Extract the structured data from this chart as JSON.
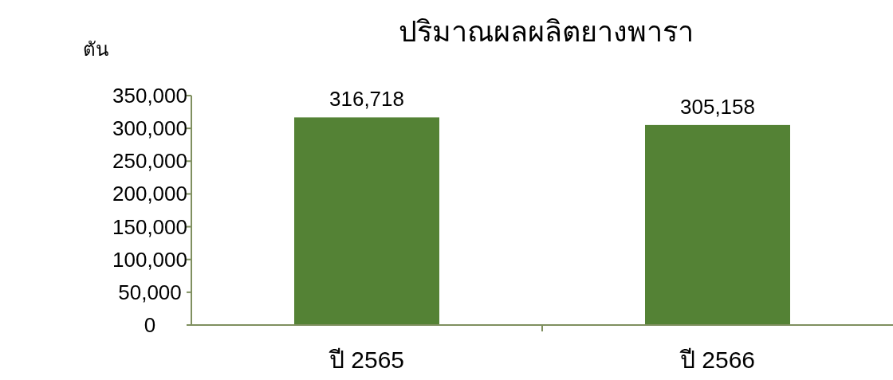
{
  "chart_data": {
    "type": "bar",
    "title": "ปริมาณผลผลิตยางพารา",
    "ylabel": "ตัน",
    "categories": [
      "ปี 2565",
      "ปี 2566"
    ],
    "values": [
      316718,
      305158
    ],
    "color": "#548235",
    "ylim": [
      0,
      350000
    ],
    "yticks": [
      {
        "value": 0,
        "label": "0"
      },
      {
        "value": 50000,
        "label": "50,000"
      },
      {
        "value": 100000,
        "label": "100,000"
      },
      {
        "value": 150000,
        "label": "150,000"
      },
      {
        "value": 200000,
        "label": "200,000"
      },
      {
        "value": 250000,
        "label": "250,000"
      },
      {
        "value": 300000,
        "label": "300,000"
      },
      {
        "value": 350000,
        "label": "350,000"
      }
    ],
    "value_labels": [
      "316,718",
      "305,158"
    ]
  }
}
